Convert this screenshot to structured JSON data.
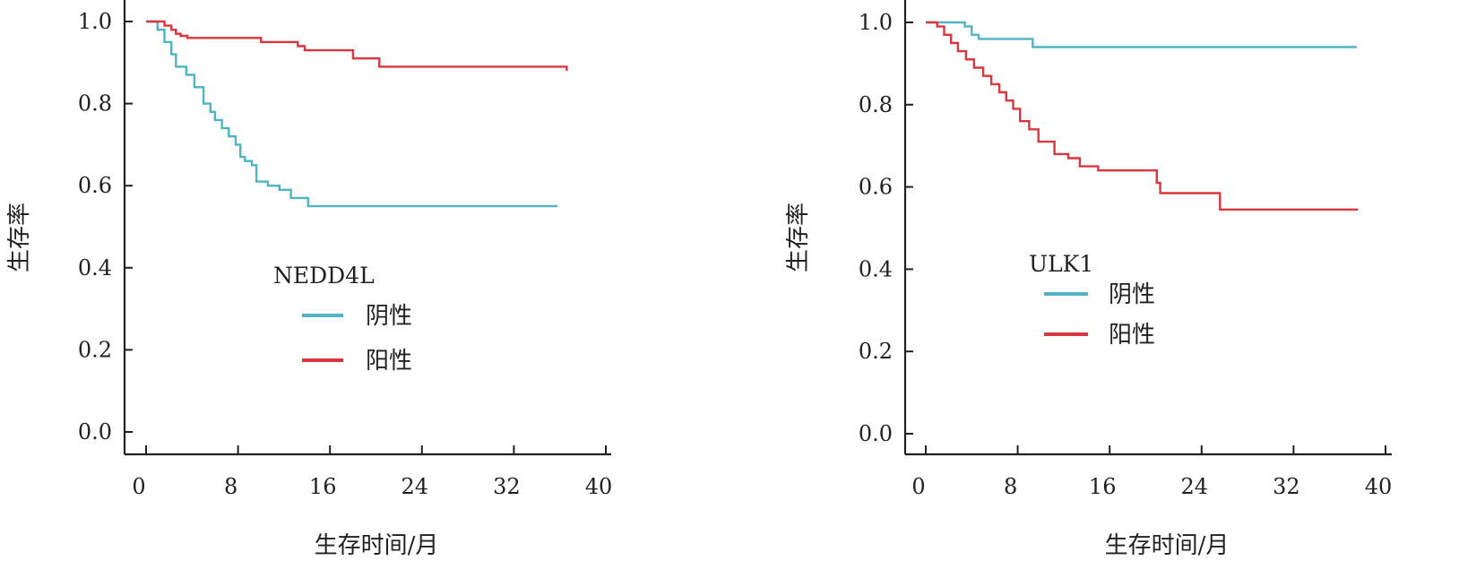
{
  "chart_data": [
    {
      "type": "line",
      "subtype": "kaplan-meier survival curve",
      "xlabel": "生存时间/月",
      "ylabel": "生存率",
      "xlim": [
        0,
        40
      ],
      "ylim": [
        0.0,
        1.0
      ],
      "x_ticks": [
        "0",
        "8",
        "16",
        "24",
        "32",
        "40"
      ],
      "y_ticks": [
        "0.0",
        "0.2",
        "0.4",
        "0.6",
        "0.8",
        "1.0"
      ],
      "grid": false,
      "legend_title": "NEDD4L",
      "legend_position": "center",
      "series": [
        {
          "name": "阴性",
          "color": "#4fb3c4",
          "points": [
            [
              0,
              1.0
            ],
            [
              0.3,
              1.0
            ],
            [
              1,
              0.98
            ],
            [
              1.6,
              0.95
            ],
            [
              2.2,
              0.92
            ],
            [
              2.6,
              0.89
            ],
            [
              3.5,
              0.87
            ],
            [
              4.2,
              0.84
            ],
            [
              5,
              0.8
            ],
            [
              5.6,
              0.78
            ],
            [
              6,
              0.76
            ],
            [
              6.6,
              0.74
            ],
            [
              7.2,
              0.72
            ],
            [
              7.8,
              0.7
            ],
            [
              8.2,
              0.67
            ],
            [
              8.6,
              0.66
            ],
            [
              9.2,
              0.65
            ],
            [
              9.6,
              0.61
            ],
            [
              10.6,
              0.6
            ],
            [
              11.6,
              0.59
            ],
            [
              12.6,
              0.57
            ],
            [
              14.1,
              0.55
            ],
            [
              35.8,
              0.55
            ]
          ]
        },
        {
          "name": "阳性",
          "color": "#d9363e",
          "points": [
            [
              0,
              1.0
            ],
            [
              0.6,
              1.0
            ],
            [
              1.6,
              0.99
            ],
            [
              2.2,
              0.98
            ],
            [
              2.6,
              0.97
            ],
            [
              3,
              0.965
            ],
            [
              3.6,
              0.96
            ],
            [
              10,
              0.95
            ],
            [
              13.2,
              0.94
            ],
            [
              13.8,
              0.93
            ],
            [
              18,
              0.91
            ],
            [
              20.3,
              0.89
            ],
            [
              36.6,
              0.89
            ],
            [
              36.6,
              0.88
            ]
          ]
        }
      ]
    },
    {
      "type": "line",
      "subtype": "kaplan-meier survival curve",
      "xlabel": "生存时间/月",
      "ylabel": "生存率",
      "xlim": [
        0,
        40
      ],
      "ylim": [
        0.0,
        1.0
      ],
      "x_ticks": [
        "0",
        "8",
        "16",
        "24",
        "32",
        "40"
      ],
      "y_ticks": [
        "0.0",
        "0.2",
        "0.4",
        "0.6",
        "0.8",
        "1.0"
      ],
      "grid": false,
      "legend_title": "ULK1",
      "legend_position": "center",
      "series": [
        {
          "name": "阴性",
          "color": "#4fb3c4",
          "points": [
            [
              0,
              1.0
            ],
            [
              2.8,
              1.0
            ],
            [
              3.4,
              0.99
            ],
            [
              4,
              0.97
            ],
            [
              4.6,
              0.96
            ],
            [
              9.3,
              0.96
            ],
            [
              9.3,
              0.94
            ],
            [
              37.5,
              0.94
            ]
          ]
        },
        {
          "name": "阳性",
          "color": "#d9363e",
          "points": [
            [
              0,
              1.0
            ],
            [
              0.4,
              1.0
            ],
            [
              1,
              0.99
            ],
            [
              1.6,
              0.97
            ],
            [
              2.2,
              0.95
            ],
            [
              2.8,
              0.93
            ],
            [
              3.5,
              0.91
            ],
            [
              4.2,
              0.89
            ],
            [
              5,
              0.87
            ],
            [
              5.7,
              0.85
            ],
            [
              6.4,
              0.83
            ],
            [
              7,
              0.81
            ],
            [
              7.6,
              0.79
            ],
            [
              8.2,
              0.76
            ],
            [
              9,
              0.74
            ],
            [
              9.8,
              0.71
            ],
            [
              11.2,
              0.68
            ],
            [
              12.4,
              0.67
            ],
            [
              13.4,
              0.65
            ],
            [
              15,
              0.64
            ],
            [
              19.8,
              0.64
            ],
            [
              20.1,
              0.61
            ],
            [
              20.4,
              0.585
            ],
            [
              25.6,
              0.585
            ],
            [
              25.6,
              0.545
            ],
            [
              37.6,
              0.545
            ]
          ]
        }
      ]
    }
  ]
}
